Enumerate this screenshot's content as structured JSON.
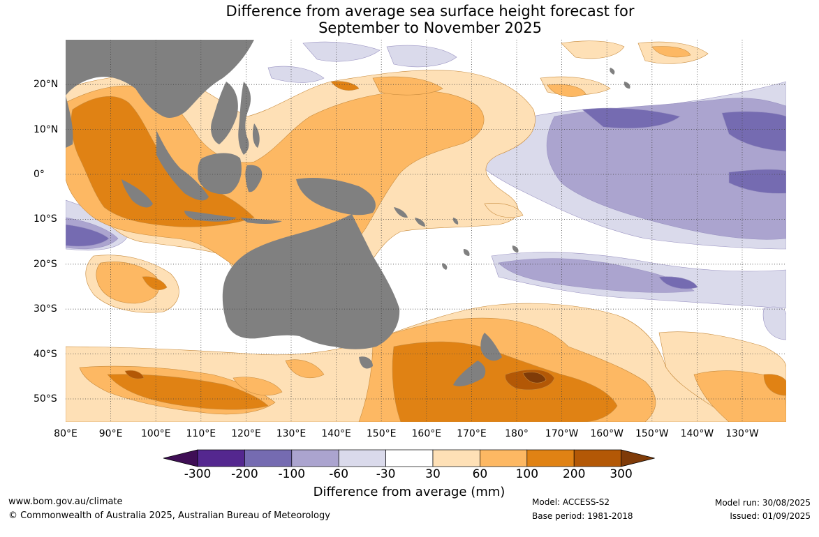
{
  "title": {
    "line1": "Difference from average sea surface height forecast for",
    "line2": "September to November 2025"
  },
  "map": {
    "lon_labels": [
      "80°E",
      "90°E",
      "100°E",
      "110°E",
      "120°E",
      "130°E",
      "140°E",
      "150°E",
      "160°E",
      "170°E",
      "180°",
      "170°W",
      "160°W",
      "150°W",
      "140°W",
      "130°W"
    ],
    "lat_labels": [
      "20°N",
      "10°N",
      "0°",
      "10°S",
      "20°S",
      "30°S",
      "40°S",
      "50°S"
    ],
    "land_color": "#808080",
    "gridlines": "dotted"
  },
  "colorbar": {
    "title": "Difference from average (mm)",
    "tick_labels": [
      "-300",
      "-200",
      "-100",
      "-60",
      "-30",
      "30",
      "60",
      "100",
      "200",
      "300"
    ],
    "colors": [
      "#3f0e55",
      "#54278f",
      "#756bb1",
      "#aba4cf",
      "#dadaeb",
      "#ffffff",
      "#fee0b6",
      "#fdb863",
      "#e08214",
      "#b35806",
      "#7f3b08"
    ]
  },
  "footer": {
    "website": "www.bom.gov.au/climate",
    "copyright": "© Commonwealth of Australia 2025, Australian Bureau of Meteorology",
    "model": "Model: ACCESS-S2",
    "base_period": "Base period: 1981-2018",
    "model_run": "Model run: 30/08/2025",
    "issued": "Issued: 01/09/2025"
  }
}
